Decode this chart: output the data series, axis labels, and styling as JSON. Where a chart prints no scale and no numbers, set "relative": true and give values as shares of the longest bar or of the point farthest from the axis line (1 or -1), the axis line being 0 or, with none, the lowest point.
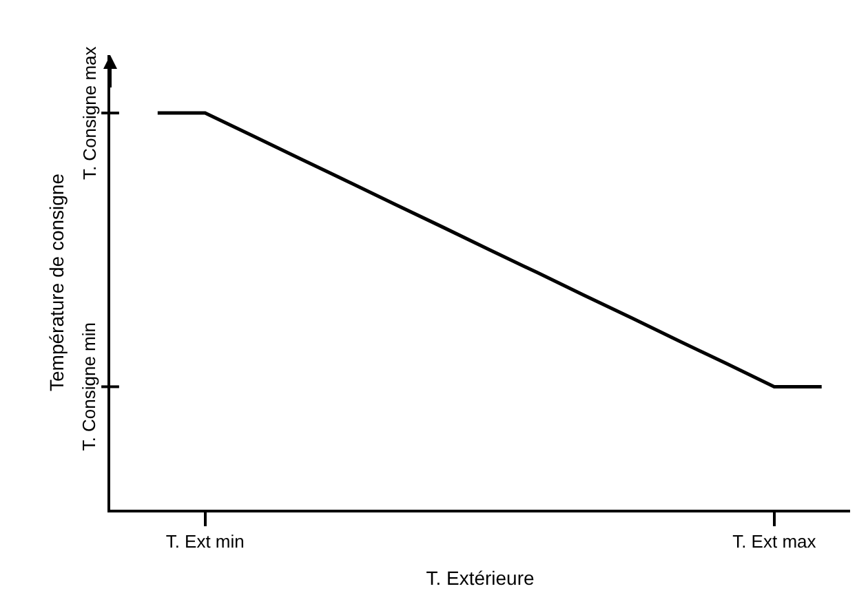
{
  "chart_data": {
    "type": "line",
    "xlabel": "T. Extérieure",
    "ylabel": "Température de consigne",
    "relative": true,
    "categories": [
      null,
      "T. Ext min",
      null,
      null,
      null,
      null,
      null,
      null,
      null,
      null,
      null,
      null,
      null,
      "T. Ext max",
      null
    ],
    "series": [
      {
        "color": "#000000",
        "values": [
          1,
          1,
          0.943,
          0.885,
          0.828,
          0.77,
          0.713,
          0.655,
          0.598,
          0.54,
          0.483,
          0.425,
          0.368,
          0.31,
          0.31
        ]
      }
    ],
    "annotations": [
      "T. Consigne max",
      "T. Consigne min"
    ],
    "marker": "none",
    "line_style": "solid"
  }
}
